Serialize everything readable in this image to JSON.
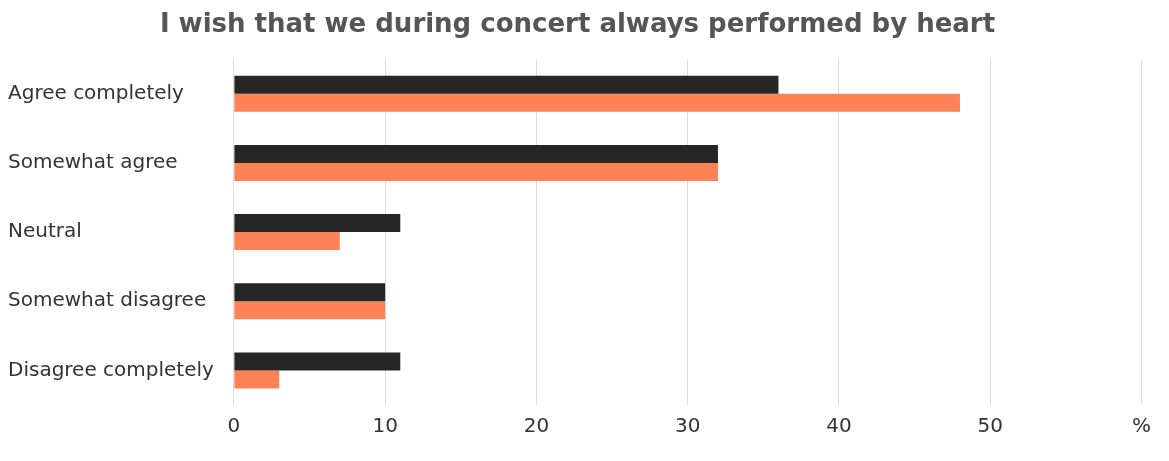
{
  "chart_data": {
    "type": "bar",
    "orientation": "horizontal",
    "title": "I wish that we during concert always performed by heart",
    "categories": [
      "Agree completely",
      "Somewhat agree",
      "Neutral",
      "Somewhat disagree",
      "Disagree completely"
    ],
    "series": [
      {
        "color": "#262626",
        "values": [
          36,
          32,
          11,
          10,
          11
        ]
      },
      {
        "color": "#ff8257",
        "values": [
          48,
          32,
          7,
          10,
          3
        ]
      }
    ],
    "xlim": [
      0,
      60
    ],
    "xticks": [
      0,
      10,
      20,
      30,
      40,
      50,
      {
        "value": 60,
        "label": "%"
      }
    ],
    "grid": "x",
    "legend": false
  }
}
